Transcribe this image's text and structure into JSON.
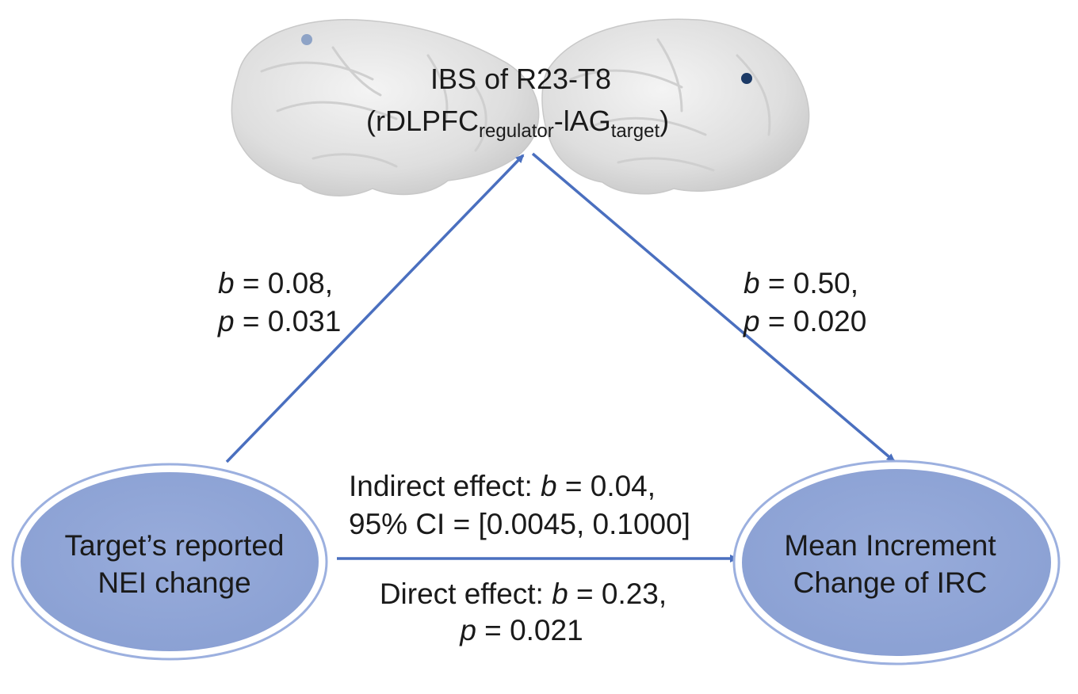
{
  "diagram": {
    "mediator": {
      "title": "IBS of R23-T8",
      "formula": {
        "open": "(rDLPFC",
        "sub1": "regulator",
        "mid": "-lAG",
        "sub2": "target",
        "close": ")"
      },
      "dots": [
        {
          "color": "#8ea3c6"
        },
        {
          "color": "#1c3a66"
        }
      ]
    },
    "nodes": {
      "left": {
        "line1": "Target’s reported",
        "line2": "NEI change"
      },
      "right": {
        "line1": "Mean Increment",
        "line2": "Change of IRC"
      }
    },
    "paths": {
      "a": {
        "b_sym": "b",
        "b_val": " = 0.08,",
        "p_sym": "p",
        "p_val": " = 0.031"
      },
      "b": {
        "b_sym": "b",
        "b_val": " = 0.50,",
        "p_sym": "p",
        "p_val": " = 0.020"
      }
    },
    "indirect": {
      "prefix": "Indirect effect: ",
      "b_sym": "b",
      "b_val": " = 0.04,",
      "ci": "95% CI = [0.0045, 0.1000]"
    },
    "direct": {
      "prefix": "Direct effect: ",
      "b_sym": "b",
      "b_val": " = 0.23,",
      "p_sym": "p",
      "p_val": " = 0.021"
    },
    "colors": {
      "arrow": "#4a6fbf",
      "node_fill": "#8fa5d6",
      "node_ring": "#9cb0df",
      "text": "#1a1a1a",
      "brain": "#e6e6e6"
    }
  }
}
